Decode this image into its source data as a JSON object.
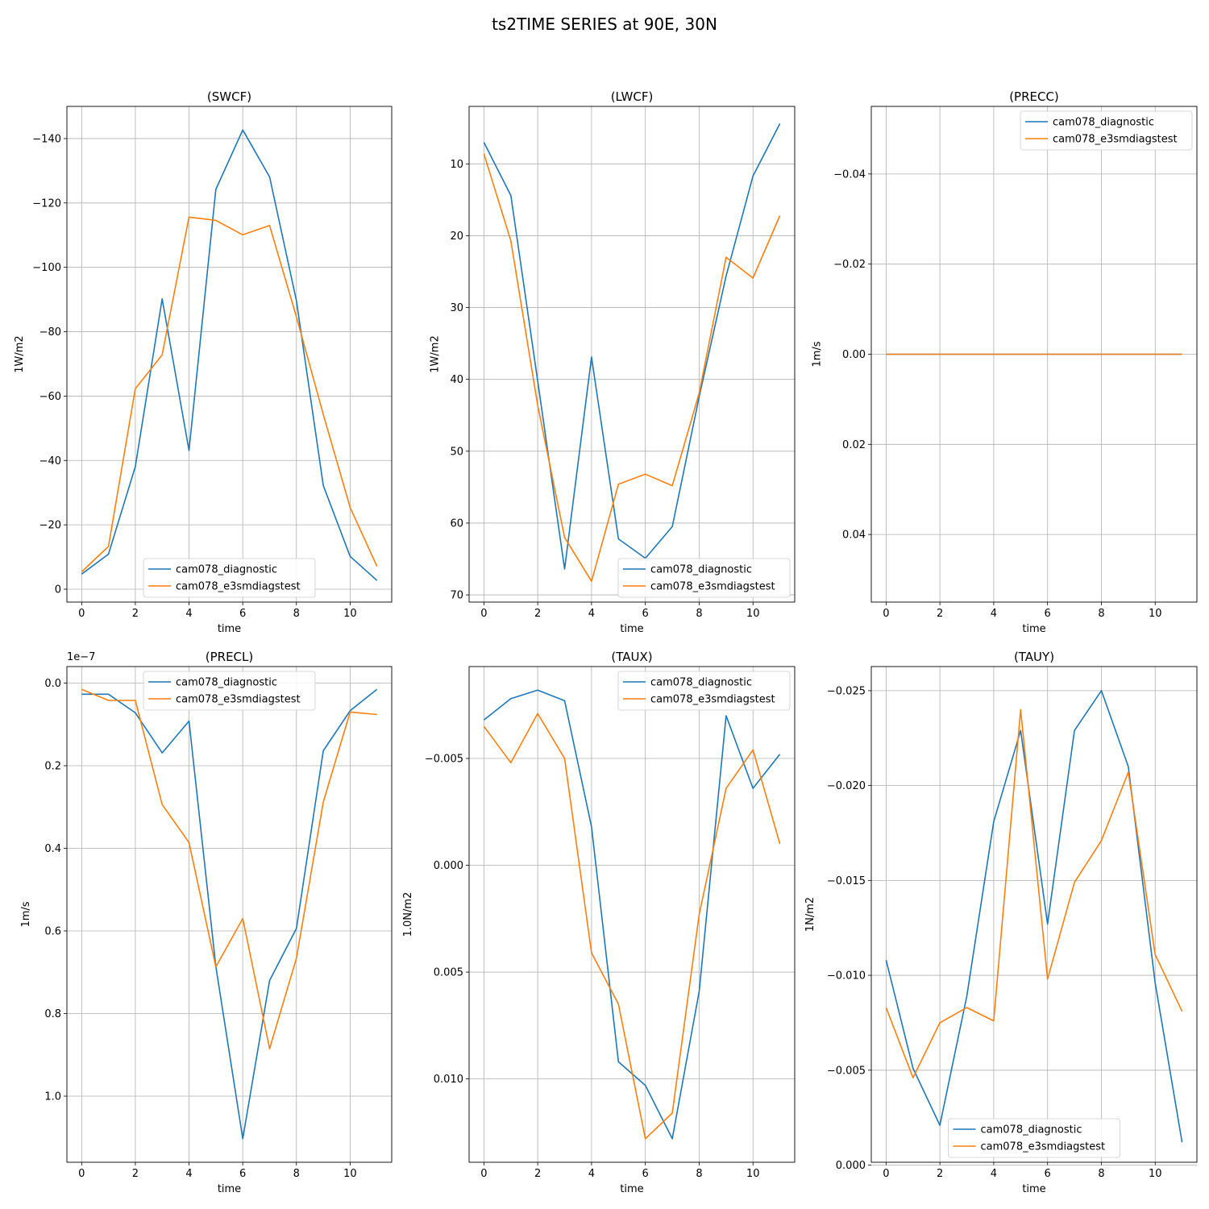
{
  "figure": {
    "suptitle": "ts2TIME SERIES at 90E, 30N"
  },
  "colors": {
    "cam078_diagnostic": "#1f77b4",
    "cam078_e3smdiagstest": "#ff7f0e",
    "grid": "#b0b0b0"
  },
  "chart_data": [
    {
      "type": "line",
      "title": "(SWCF)",
      "xlabel": "time",
      "ylabel": "1W/m2",
      "xlim": [
        -0.55,
        11.55
      ],
      "ylim": [
        4.0,
        -150.0
      ],
      "inverted_y": true,
      "xticks": [
        0,
        2,
        4,
        6,
        8,
        10
      ],
      "yticks": [
        0,
        -20,
        -40,
        -60,
        -80,
        -100,
        -120,
        -140
      ],
      "ytick_labels": [
        "0",
        "−20",
        "−40",
        "−60",
        "−80",
        "−100",
        "−120",
        "−140"
      ],
      "tick_exponent": "",
      "legend_loc": "lower center",
      "grid": true,
      "x": [
        0,
        1,
        2,
        3,
        4,
        5,
        6,
        7,
        8,
        9,
        10,
        11
      ],
      "series": [
        {
          "name": "cam078_diagnostic",
          "values": [
            -4.7,
            -10.9,
            -38.1,
            -90.2,
            -43.1,
            -124.2,
            -142.7,
            -128.1,
            -89.6,
            -32.2,
            -10.2,
            -2.7
          ]
        },
        {
          "name": "cam078_e3smdiagstest",
          "values": [
            -5.4,
            -13.3,
            -62.3,
            -72.8,
            -115.6,
            -114.6,
            -110.1,
            -113.0,
            -84.6,
            -54.3,
            -25.4,
            -7.1
          ]
        }
      ]
    },
    {
      "type": "line",
      "title": "(LWCF)",
      "xlabel": "time",
      "ylabel": "1W/m2",
      "xlim": [
        -0.55,
        11.55
      ],
      "ylim": [
        71.0,
        2.0
      ],
      "inverted_y": true,
      "xticks": [
        0,
        2,
        4,
        6,
        8,
        10
      ],
      "yticks": [
        10,
        20,
        30,
        40,
        50,
        60,
        70
      ],
      "ytick_labels": [
        "10",
        "20",
        "30",
        "40",
        "50",
        "60",
        "70"
      ],
      "tick_exponent": "",
      "legend_loc": "lower right",
      "grid": true,
      "x": [
        0,
        1,
        2,
        3,
        4,
        5,
        6,
        7,
        8,
        9,
        10,
        11
      ],
      "series": [
        {
          "name": "cam078_diagnostic",
          "values": [
            7.0,
            14.4,
            40.2,
            66.4,
            36.9,
            62.2,
            64.9,
            60.5,
            42.4,
            25.6,
            11.7,
            4.4
          ]
        },
        {
          "name": "cam078_e3smdiagstest",
          "values": [
            8.6,
            20.7,
            43.6,
            62.0,
            68.1,
            54.6,
            53.2,
            54.8,
            41.9,
            23.0,
            25.9,
            17.2
          ]
        }
      ]
    },
    {
      "type": "line",
      "title": "(PRECC)",
      "xlabel": "time",
      "ylabel": "1m/s",
      "xlim": [
        -0.55,
        11.55
      ],
      "ylim": [
        0.055,
        -0.055
      ],
      "inverted_y": true,
      "xticks": [
        0,
        2,
        4,
        6,
        8,
        10
      ],
      "yticks": [
        0.04,
        0.02,
        0.0,
        -0.02,
        -0.04
      ],
      "ytick_labels": [
        "0.04",
        "0.02",
        "0.00",
        "−0.02",
        "−0.04"
      ],
      "tick_exponent": "",
      "legend_loc": "upper right",
      "grid": true,
      "x": [
        0,
        1,
        2,
        3,
        4,
        5,
        6,
        7,
        8,
        9,
        10,
        11
      ],
      "series": [
        {
          "name": "cam078_diagnostic",
          "values": [
            0,
            0,
            0,
            0,
            0,
            0,
            0,
            0,
            0,
            0,
            0,
            0
          ]
        },
        {
          "name": "cam078_e3smdiagstest",
          "values": [
            0,
            0,
            0,
            0,
            0,
            0,
            0,
            0,
            0,
            0,
            0,
            0
          ]
        }
      ]
    },
    {
      "type": "line",
      "title": "(PRECL)",
      "xlabel": "time",
      "ylabel": "1m/s",
      "xlim": [
        -0.55,
        11.55
      ],
      "ylim": [
        1.16,
        -0.04
      ],
      "inverted_y": true,
      "xticks": [
        0,
        2,
        4,
        6,
        8,
        10
      ],
      "yticks": [
        0.0,
        0.2,
        0.4,
        0.6,
        0.8,
        1.0
      ],
      "ytick_labels": [
        "0.0",
        "0.2",
        "0.4",
        "0.6",
        "0.8",
        "1.0"
      ],
      "tick_exponent": "1e−7",
      "legend_loc": "upper center",
      "grid": true,
      "x": [
        0,
        1,
        2,
        3,
        4,
        5,
        6,
        7,
        8,
        9,
        10,
        11
      ],
      "series": [
        {
          "name": "cam078_diagnostic",
          "values": [
            0.027,
            0.027,
            0.072,
            0.169,
            0.092,
            0.686,
            1.103,
            0.72,
            0.594,
            0.164,
            0.067,
            0.015
          ]
        },
        {
          "name": "cam078_e3smdiagstest",
          "values": [
            0.015,
            0.042,
            0.042,
            0.294,
            0.386,
            0.687,
            0.57,
            0.885,
            0.666,
            0.288,
            0.07,
            0.076
          ]
        }
      ]
    },
    {
      "type": "line",
      "title": "(TAUX)",
      "xlabel": "time",
      "ylabel": "1.0N/m2",
      "xlim": [
        -0.55,
        11.55
      ],
      "ylim": [
        0.0139,
        -0.0093
      ],
      "inverted_y": true,
      "xticks": [
        0,
        2,
        4,
        6,
        8,
        10
      ],
      "yticks": [
        0.01,
        0.005,
        0.0,
        -0.005
      ],
      "ytick_labels": [
        "0.010",
        "0.005",
        "0.000",
        "−0.005"
      ],
      "tick_exponent": "",
      "legend_loc": "upper right",
      "grid": true,
      "x": [
        0,
        1,
        2,
        3,
        4,
        5,
        6,
        7,
        8,
        9,
        10,
        11
      ],
      "series": [
        {
          "name": "cam078_diagnostic",
          "values": [
            -0.0068,
            -0.0078,
            -0.0082,
            -0.0077,
            -0.0018,
            0.0092,
            0.0103,
            0.0128,
            0.0059,
            -0.007,
            -0.0036,
            -0.0052
          ]
        },
        {
          "name": "cam078_e3smdiagstest",
          "values": [
            -0.0065,
            -0.0048,
            -0.0071,
            -0.005,
            0.0041,
            0.0065,
            0.0128,
            0.0116,
            0.0023,
            -0.0036,
            -0.0054,
            -0.001
          ]
        }
      ]
    },
    {
      "type": "line",
      "title": "(TAUY)",
      "xlabel": "time",
      "ylabel": "1N/m2",
      "xlim": [
        -0.55,
        11.55
      ],
      "ylim": [
        -0.00015,
        -0.02627
      ],
      "inverted_y": true,
      "xticks": [
        0,
        2,
        4,
        6,
        8,
        10
      ],
      "yticks": [
        0.0,
        -0.005,
        -0.01,
        -0.015,
        -0.02,
        -0.025
      ],
      "ytick_labels": [
        "0.000",
        "−0.005",
        "−0.010",
        "−0.015",
        "−0.020",
        "−0.025"
      ],
      "tick_exponent": "",
      "legend_loc": "lower center",
      "grid": true,
      "x": [
        0,
        1,
        2,
        3,
        4,
        5,
        6,
        7,
        8,
        9,
        10,
        11
      ],
      "series": [
        {
          "name": "cam078_diagnostic",
          "values": [
            -0.0108,
            -0.0051,
            -0.0021,
            -0.0089,
            -0.0181,
            -0.0229,
            -0.0127,
            -0.0229,
            -0.025,
            -0.021,
            -0.0096,
            -0.0012
          ]
        },
        {
          "name": "cam078_e3smdiagstest",
          "values": [
            -0.0083,
            -0.0046,
            -0.0075,
            -0.0083,
            -0.0076,
            -0.024,
            -0.0098,
            -0.0149,
            -0.0171,
            -0.0207,
            -0.0111,
            -0.0081
          ]
        }
      ]
    }
  ]
}
